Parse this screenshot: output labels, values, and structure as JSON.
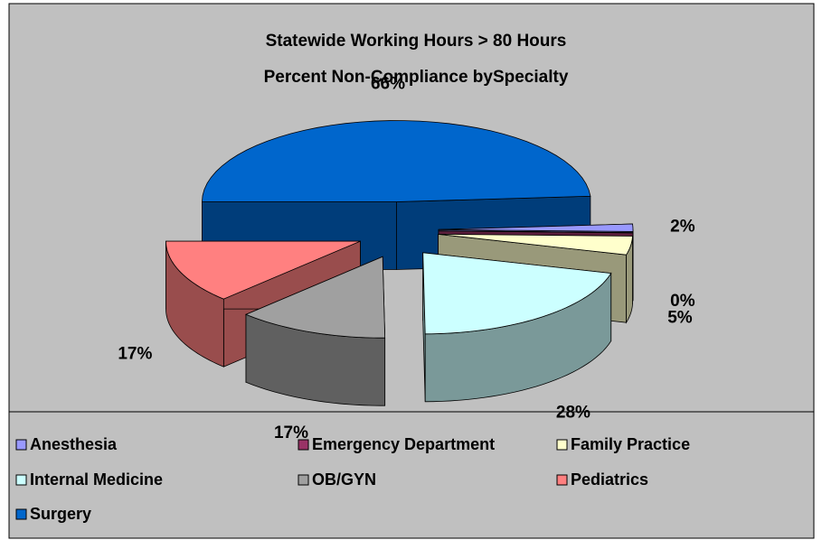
{
  "chart_data": {
    "type": "pie3d",
    "title": "Statewide Working Hours > 80 Hours",
    "subtitle": "Percent Non-Compliance bySpecialty",
    "categories": [
      "Anesthesia",
      "Emergency Department",
      "Family Practice",
      "Internal Medicine",
      "OB/GYN",
      "Pediatrics",
      "Surgery"
    ],
    "values": [
      2,
      0,
      5,
      28,
      17,
      17,
      66
    ],
    "value_labels": [
      "2%",
      "0%",
      "5%",
      "28%",
      "17%",
      "17%",
      "66%"
    ],
    "colors": [
      "#9999ff",
      "#993366",
      "#ffffcc",
      "#ccffff",
      "#a0a0a0",
      "#ff8080",
      "#0066cc"
    ],
    "legend": "bottom"
  }
}
